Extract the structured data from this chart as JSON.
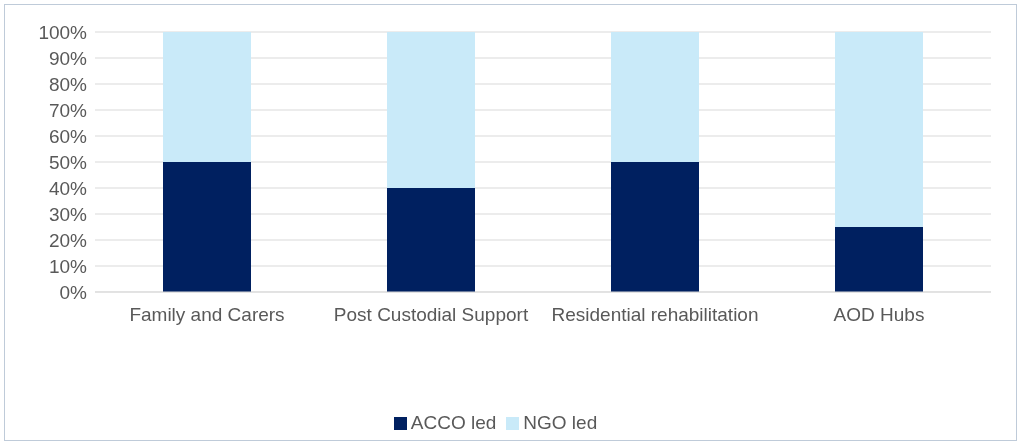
{
  "chart_data": {
    "type": "bar",
    "stacked": true,
    "categories": [
      "Family and Carers",
      "Post Custodial Support",
      "Residential rehabilitation",
      "AOD Hubs"
    ],
    "series": [
      {
        "name": "ACCO led",
        "color": "#002060",
        "values": [
          50,
          40,
          50,
          25
        ]
      },
      {
        "name": "NGO led",
        "color": "#c9eaf9",
        "values": [
          50,
          60,
          50,
          75
        ]
      }
    ],
    "ylim": [
      0,
      100
    ],
    "yticks": [
      {
        "value": 0,
        "label": "0%"
      },
      {
        "value": 10,
        "label": "10%"
      },
      {
        "value": 20,
        "label": "20%"
      },
      {
        "value": 30,
        "label": "30%"
      },
      {
        "value": 40,
        "label": "40%"
      },
      {
        "value": 50,
        "label": "50%"
      },
      {
        "value": 60,
        "label": "60%"
      },
      {
        "value": 70,
        "label": "70%"
      },
      {
        "value": 80,
        "label": "80%"
      },
      {
        "value": 90,
        "label": "90%"
      },
      {
        "value": 100,
        "label": "100%"
      }
    ],
    "grid": "y",
    "legend": "bottom"
  }
}
